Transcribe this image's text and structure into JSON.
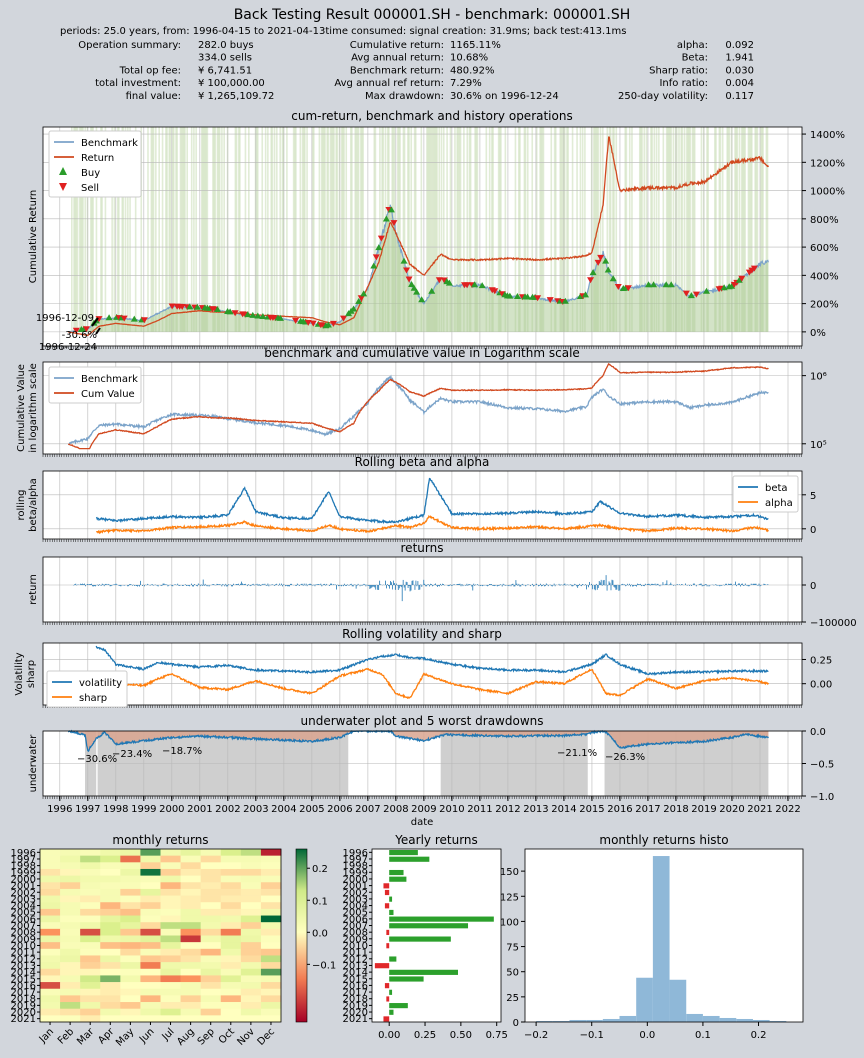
{
  "title": "Back Testing Result 000001.SH - benchmark: 000001.SH",
  "periods_line": "periods: 25.0 years, from: 1996-04-15 to 2021-04-13time consumed:   signal creation: 31.9ms;  back test:413.1ms",
  "summary": {
    "col1": [
      {
        "label": "Operation summary:",
        "value": "282.0     buys"
      },
      {
        "label": "",
        "value": "334.0     sells"
      },
      {
        "label": "Total op fee:",
        "value": "¥     6,741.51"
      },
      {
        "label": "total investment:",
        "value": "¥   100,000.00"
      },
      {
        "label": "final value:",
        "value": "¥ 1,265,109.72"
      }
    ],
    "col2": [
      {
        "label": "Cumulative return:",
        "value": "1165.11%"
      },
      {
        "label": "Avg annual return:",
        "value": "10.68%"
      },
      {
        "label": "Benchmark return:",
        "value": "480.92%"
      },
      {
        "label": "Avg annual ref return:",
        "value": "7.29%"
      },
      {
        "label": "Max drawdown:",
        "value": "30.6% on 1996-12-24"
      }
    ],
    "col3": [
      {
        "label": "alpha:",
        "value": "0.092"
      },
      {
        "label": "Beta:",
        "value": "1.941"
      },
      {
        "label": "Sharp ratio:",
        "value": "0.030"
      },
      {
        "label": "Info ratio:",
        "value": "0.004"
      },
      {
        "label": "250-day volatility:",
        "value": "0.117"
      }
    ]
  },
  "colors": {
    "benchmark": "#7ba3c9",
    "return": "#d1491f",
    "buy": "#2a9c2a",
    "sell": "#e02020",
    "blue": "#1f77b4",
    "orange": "#ff7f0e",
    "green": "#2ca02c",
    "hist": "#8fb8d8"
  },
  "chart_data": [
    {
      "type": "line",
      "title": "cum-return, benchmark and history operations",
      "ylabel": "Cumulative Return",
      "yticks": [
        "0%",
        "200%",
        "400%",
        "600%",
        "800%",
        "1000%",
        "1200%",
        "1400%"
      ],
      "ylim": [
        -100,
        1450
      ],
      "legend": [
        "Benchmark",
        "Return",
        "Buy",
        "Sell"
      ],
      "annotations": [
        "1996-12-09",
        "-30.6%",
        "1996-12-24"
      ],
      "x": [
        1996.3,
        1997.0,
        1997.4,
        1998.0,
        1999.0,
        1999.5,
        2000.0,
        2001.0,
        2001.5,
        2002.0,
        2003.0,
        2004.0,
        2005.0,
        2005.5,
        2006.0,
        2006.5,
        2007.0,
        2007.4,
        2007.8,
        2008.0,
        2008.5,
        2009.0,
        2009.6,
        2010.0,
        2011.0,
        2012.0,
        2013.0,
        2014.0,
        2014.8,
        2015.0,
        2015.4,
        2015.6,
        2016.0,
        2017.0,
        2018.0,
        2018.5,
        2019.0,
        2020.0,
        2021.0,
        2021.3
      ],
      "series": [
        {
          "name": "Benchmark",
          "values": [
            0,
            20,
            90,
            100,
            80,
            130,
            180,
            170,
            160,
            140,
            110,
            90,
            60,
            40,
            70,
            160,
            310,
            600,
            900,
            700,
            350,
            200,
            380,
            330,
            330,
            250,
            240,
            210,
            260,
            400,
            560,
            420,
            300,
            330,
            330,
            250,
            280,
            320,
            480,
            500
          ]
        },
        {
          "name": "Return",
          "values": [
            0,
            -25,
            40,
            60,
            40,
            80,
            130,
            150,
            140,
            140,
            120,
            110,
            100,
            70,
            50,
            100,
            320,
            500,
            780,
            700,
            480,
            400,
            550,
            510,
            510,
            520,
            510,
            520,
            540,
            560,
            900,
            1390,
            1000,
            1020,
            1020,
            1050,
            1060,
            1200,
            1230,
            1165
          ]
        }
      ]
    },
    {
      "type": "line",
      "title": "benchmark and cumulative value in Logarithm scale",
      "ylabel": "Cumulative Value in logarithm scale",
      "yticks": [
        "10⁵",
        "10⁶"
      ],
      "legend": [
        "Benchmark",
        "Cum Value"
      ]
    },
    {
      "type": "line",
      "title": "Rolling beta and alpha",
      "ylabel": "rolling beta/alpha",
      "yticks": [
        "0",
        "5"
      ],
      "ylim": [
        -1.5,
        8.5
      ],
      "legend": [
        "beta",
        "alpha"
      ],
      "x": [
        1997.3,
        1998.0,
        1999.0,
        2000.0,
        2001.0,
        2002.0,
        2002.6,
        2003.0,
        2004.0,
        2005.0,
        2005.6,
        2006.0,
        2007.0,
        2008.0,
        2008.5,
        2009.0,
        2009.2,
        2010.0,
        2011.0,
        2012.0,
        2013.0,
        2014.0,
        2015.0,
        2015.3,
        2016.0,
        2017.0,
        2018.0,
        2019.0,
        2020.0,
        2020.8,
        2021.3
      ],
      "series": [
        {
          "name": "beta",
          "values": [
            1.5,
            1.2,
            1.5,
            1.8,
            1.7,
            2.0,
            6.0,
            2.5,
            1.6,
            1.5,
            5.5,
            1.8,
            1.2,
            1.0,
            1.5,
            2.0,
            7.5,
            2.2,
            2.2,
            2.3,
            2.5,
            2.2,
            2.5,
            4.0,
            2.3,
            1.8,
            2.0,
            1.7,
            1.8,
            2.0,
            1.4
          ]
        },
        {
          "name": "alpha",
          "values": [
            -0.5,
            -0.2,
            -0.3,
            0.2,
            0.3,
            0.5,
            1.0,
            0.4,
            0.0,
            -0.3,
            0.5,
            0.0,
            -0.4,
            0.5,
            0.2,
            0.8,
            1.8,
            0.2,
            0.0,
            0.1,
            0.3,
            0.0,
            0.4,
            0.5,
            0.0,
            -0.3,
            0.1,
            0.0,
            -0.3,
            0.2,
            -0.2
          ]
        }
      ]
    },
    {
      "type": "bar",
      "title": "returns",
      "ylabel": "return",
      "yticks": [
        "0",
        "−100000"
      ]
    },
    {
      "type": "line",
      "title": "Rolling volatility and sharp",
      "ylabel": "Volatility sharp",
      "yticks": [
        "0.00",
        "0.25"
      ],
      "ylim": [
        -0.22,
        0.42
      ],
      "legend": [
        "volatility",
        "sharp"
      ],
      "x": [
        1997.3,
        1997.6,
        1998.0,
        1999.0,
        1999.5,
        2000.0,
        2001.0,
        2002.0,
        2003.0,
        2004.0,
        2005.0,
        2006.0,
        2007.0,
        2007.5,
        2008.0,
        2008.5,
        2009.0,
        2010.0,
        2011.0,
        2012.0,
        2013.0,
        2014.0,
        2015.0,
        2015.5,
        2016.0,
        2017.0,
        2018.0,
        2019.0,
        2020.0,
        2021.0,
        2021.3
      ],
      "series": [
        {
          "name": "volatility",
          "values": [
            0.38,
            0.35,
            0.2,
            0.15,
            0.22,
            0.2,
            0.17,
            0.19,
            0.14,
            0.13,
            0.12,
            0.14,
            0.25,
            0.28,
            0.3,
            0.27,
            0.26,
            0.2,
            0.16,
            0.14,
            0.14,
            0.12,
            0.2,
            0.3,
            0.2,
            0.1,
            0.12,
            0.12,
            0.13,
            0.13,
            0.13
          ]
        },
        {
          "name": "sharp",
          "values": [
            0.1,
            -0.05,
            0.0,
            -0.02,
            0.05,
            0.1,
            -0.04,
            -0.06,
            0.03,
            -0.05,
            -0.1,
            0.08,
            0.15,
            0.1,
            -0.1,
            -0.15,
            0.1,
            0.0,
            -0.06,
            -0.1,
            0.02,
            0.0,
            0.15,
            -0.1,
            -0.12,
            0.05,
            -0.05,
            0.03,
            0.06,
            0.02,
            0.0
          ]
        }
      ]
    },
    {
      "type": "area",
      "title": "underwater plot and 5 worst drawdowns",
      "ylabel": "underwater",
      "xlabel": "date",
      "yticks": [
        "0.0",
        "−0.5",
        "−1.0"
      ],
      "ylim": [
        -1.0,
        0.0
      ],
      "xticks": [
        "1996",
        "1997",
        "1998",
        "1999",
        "2000",
        "2001",
        "2002",
        "2003",
        "2004",
        "2005",
        "2006",
        "2007",
        "2008",
        "2009",
        "2010",
        "2011",
        "2012",
        "2013",
        "2014",
        "2015",
        "2016",
        "2017",
        "2018",
        "2019",
        "2020",
        "2021",
        "2022"
      ],
      "drawdown_labels": [
        "−30.6%",
        "−23.4%",
        "−18.7%",
        "−21.1%",
        "−26.3%"
      ],
      "x": [
        1996.3,
        1996.9,
        1997.0,
        1997.3,
        1997.6,
        1998.0,
        1999.0,
        2000.0,
        2001.0,
        2002.0,
        2003.0,
        2004.0,
        2005.0,
        2006.0,
        2006.5,
        2007.0,
        2007.8,
        2008.0,
        2009.0,
        2009.8,
        2010.0,
        2012.0,
        2014.0,
        2014.8,
        2015.0,
        2015.4,
        2015.6,
        2016.0,
        2017.0,
        2018.0,
        2019.0,
        2020.0,
        2020.5,
        2021.0,
        2021.3
      ],
      "values": [
        0,
        -0.06,
        -0.31,
        -0.12,
        -0.02,
        -0.2,
        -0.15,
        -0.1,
        -0.08,
        -0.1,
        -0.12,
        -0.14,
        -0.16,
        -0.1,
        0,
        0,
        0,
        -0.08,
        -0.15,
        -0.05,
        -0.06,
        -0.08,
        -0.07,
        -0.05,
        -0.02,
        0,
        -0.05,
        -0.26,
        -0.2,
        -0.18,
        -0.16,
        -0.1,
        -0.05,
        -0.08,
        -0.1
      ]
    },
    {
      "type": "heatmap",
      "title": "monthly returns",
      "rows": [
        "1996",
        "1997",
        "1998",
        "1999",
        "2000",
        "2001",
        "2002",
        "2003",
        "2004",
        "2005",
        "2006",
        "2007",
        "2008",
        "2009",
        "2010",
        "2011",
        "2012",
        "2013",
        "2014",
        "2015",
        "2016",
        "2017",
        "2018",
        "2019",
        "2020",
        "2021"
      ],
      "columns": [
        "Jan",
        "Feb",
        "Mar",
        "Apr",
        "May",
        "Jun",
        "Jul",
        "Aug",
        "Sep",
        "Oct",
        "Nov",
        "Dec"
      ],
      "colorbar_ticks": [
        "0.2",
        "0.1",
        "0.0",
        "−0.1"
      ],
      "values": [
        [
          0.02,
          0.03,
          0.02,
          0.05,
          0.06,
          0.2,
          0.04,
          0.08,
          0.03,
          0.12,
          0.14,
          -0.22
        ],
        [
          0.02,
          0.05,
          0.14,
          0.12,
          -0.15,
          0.05,
          -0.06,
          0.02,
          -0.04,
          0.03,
          0.03,
          0.02
        ],
        [
          0.02,
          0.03,
          0.05,
          0.02,
          0.03,
          -0.05,
          0.02,
          -0.04,
          0.0,
          0.0,
          0.02,
          0.01
        ],
        [
          -0.03,
          -0.01,
          0.02,
          0.0,
          0.06,
          0.24,
          -0.05,
          -0.02,
          -0.03,
          -0.04,
          -0.04,
          -0.02
        ],
        [
          0.05,
          0.06,
          0.04,
          0.04,
          0.03,
          0.02,
          0.05,
          0.0,
          -0.03,
          0.02,
          0.03,
          0.02
        ],
        [
          -0.03,
          -0.05,
          0.03,
          0.02,
          0.02,
          0.0,
          -0.08,
          -0.03,
          -0.02,
          -0.04,
          0.02,
          -0.05
        ],
        [
          -0.04,
          0.03,
          0.02,
          0.03,
          -0.05,
          0.08,
          -0.03,
          -0.01,
          -0.03,
          -0.03,
          -0.02,
          -0.03
        ],
        [
          0.05,
          -0.01,
          -0.02,
          0.03,
          0.01,
          -0.02,
          -0.01,
          -0.02,
          -0.03,
          -0.02,
          -0.02,
          0.0
        ],
        [
          0.06,
          0.03,
          0.01,
          -0.08,
          -0.03,
          -0.05,
          -0.01,
          -0.02,
          0.0,
          -0.04,
          0.0,
          -0.03
        ],
        [
          -0.06,
          0.03,
          -0.04,
          -0.05,
          -0.07,
          0.02,
          0.01,
          0.05,
          -0.02,
          -0.02,
          -0.01,
          0.04
        ],
        [
          0.06,
          0.01,
          0.01,
          0.08,
          0.12,
          0.01,
          -0.01,
          0.05,
          0.05,
          0.04,
          0.11,
          0.26
        ],
        [
          0.02,
          0.03,
          0.05,
          0.12,
          0.08,
          -0.04,
          0.14,
          0.14,
          0.04,
          -0.02,
          -0.05,
          0.04
        ],
        [
          -0.12,
          0.02,
          -0.18,
          0.12,
          -0.06,
          -0.18,
          0.02,
          -0.12,
          -0.04,
          -0.14,
          0.05,
          -0.02
        ],
        [
          0.06,
          0.03,
          0.12,
          0.05,
          0.06,
          0.09,
          0.14,
          -0.2,
          0.04,
          0.08,
          0.06,
          0.01
        ],
        [
          -0.07,
          0.02,
          0.02,
          -0.07,
          -0.08,
          -0.07,
          0.08,
          0.0,
          0.0,
          0.08,
          -0.05,
          0.0
        ],
        [
          0.01,
          0.05,
          0.01,
          0.0,
          -0.04,
          0.02,
          -0.02,
          -0.04,
          -0.08,
          0.05,
          -0.05,
          -0.06
        ],
        [
          0.04,
          0.06,
          -0.06,
          0.06,
          0.01,
          -0.06,
          -0.05,
          -0.03,
          0.02,
          -0.01,
          -0.04,
          0.14
        ],
        [
          0.05,
          -0.01,
          -0.05,
          -0.03,
          0.06,
          -0.14,
          0.05,
          0.05,
          0.04,
          -0.02,
          0.04,
          -0.04
        ],
        [
          -0.04,
          -0.01,
          -0.01,
          0.0,
          0.01,
          0.0,
          0.07,
          0.0,
          0.07,
          0.02,
          0.1,
          0.2
        ],
        [
          -0.01,
          0.03,
          0.13,
          0.18,
          0.04,
          -0.08,
          -0.14,
          -0.12,
          -0.05,
          0.1,
          0.02,
          0.03
        ],
        [
          -0.18,
          -0.02,
          0.1,
          -0.02,
          0.0,
          0.0,
          0.01,
          0.03,
          -0.03,
          0.03,
          0.04,
          -0.04
        ],
        [
          0.02,
          0.03,
          -0.01,
          -0.02,
          -0.01,
          0.03,
          0.03,
          0.03,
          0.0,
          0.01,
          -0.02,
          -0.01
        ],
        [
          0.05,
          -0.06,
          -0.03,
          -0.03,
          0.0,
          -0.08,
          0.01,
          -0.05,
          0.03,
          -0.08,
          -0.01,
          -0.04
        ],
        [
          0.04,
          0.14,
          0.05,
          -0.04,
          -0.06,
          0.03,
          -0.02,
          -0.02,
          0.01,
          0.01,
          -0.02,
          0.06
        ],
        [
          -0.02,
          -0.03,
          -0.05,
          0.04,
          -0.01,
          0.05,
          0.11,
          0.03,
          -0.05,
          0.0,
          0.05,
          0.02
        ],
        [
          0.0,
          0.01,
          -0.02,
          0.0,
          0.0,
          0.0,
          0.0,
          0.0,
          0.0,
          0.0,
          0.0,
          0.0
        ]
      ]
    },
    {
      "type": "bar",
      "title": "Yearly returns",
      "categories": [
        "1996",
        "1997",
        "1998",
        "1999",
        "2000",
        "2001",
        "2002",
        "2003",
        "2004",
        "2005",
        "2006",
        "2007",
        "2008",
        "2009",
        "2010",
        "2011",
        "2012",
        "2013",
        "2014",
        "2015",
        "2016",
        "2017",
        "2018",
        "2019",
        "2020",
        "2021"
      ],
      "values": [
        0.2,
        0.28,
        0.0,
        0.1,
        0.12,
        -0.04,
        -0.03,
        0.02,
        -0.03,
        0.03,
        0.73,
        0.55,
        -0.02,
        0.43,
        -0.02,
        0.0,
        0.05,
        -0.1,
        0.48,
        0.24,
        -0.03,
        0.02,
        -0.02,
        0.13,
        0.03,
        -0.04
      ],
      "xticks": [
        "0.00",
        "0.25",
        "0.50",
        "0.75"
      ],
      "xlim": [
        -0.12,
        0.78
      ]
    },
    {
      "type": "bar",
      "title": "monthly returns histo",
      "bins": [
        -0.2,
        -0.17,
        -0.14,
        -0.11,
        -0.08,
        -0.05,
        -0.02,
        0.01,
        0.04,
        0.07,
        0.1,
        0.13,
        0.16,
        0.19,
        0.22,
        0.25
      ],
      "counts": [
        1,
        1,
        2,
        2,
        3,
        6,
        44,
        165,
        42,
        8,
        6,
        4,
        3,
        2,
        1
      ],
      "xticks": [
        "−0.2",
        "−0.1",
        "0.0",
        "0.1",
        "0.2"
      ],
      "yticks": [
        "0",
        "25",
        "50",
        "75",
        "100",
        "125",
        "150"
      ],
      "xlim": [
        -0.22,
        0.28
      ],
      "ylim": [
        0,
        172
      ]
    }
  ]
}
